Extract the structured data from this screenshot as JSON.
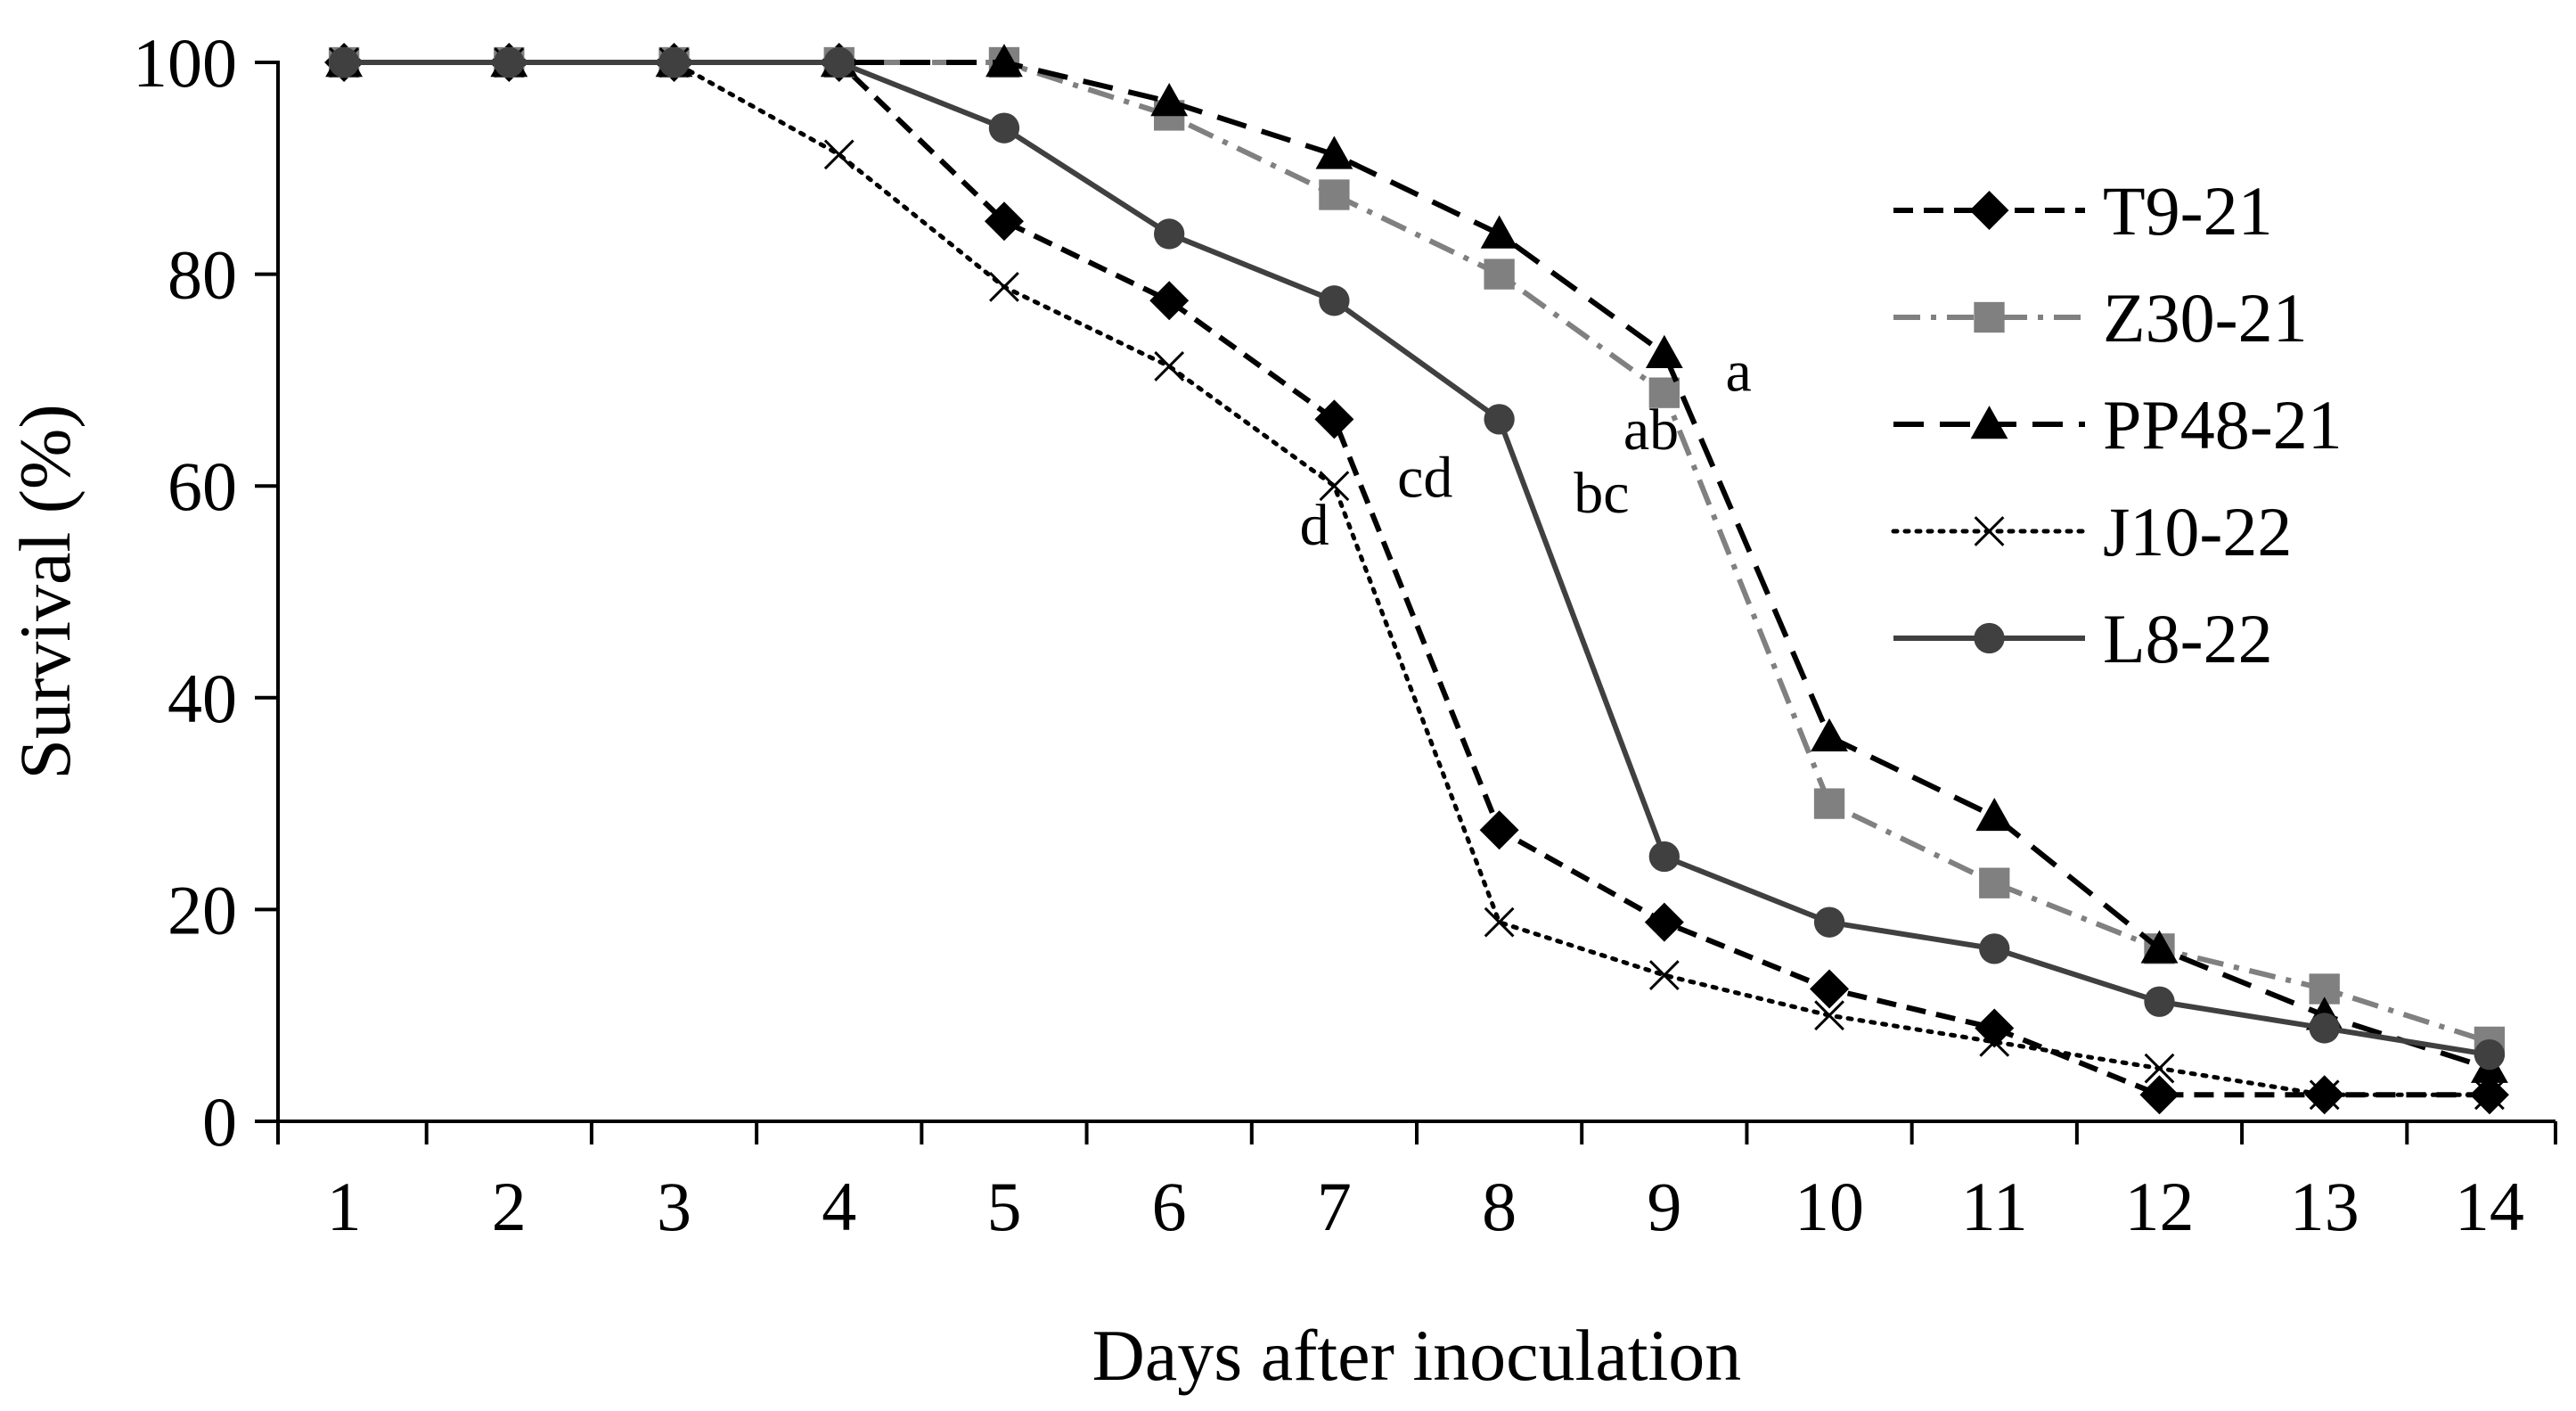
{
  "chart_data": {
    "type": "line",
    "title": "",
    "xlabel": "Days after inoculation",
    "ylabel": "Survival (%)",
    "x": [
      1,
      2,
      3,
      4,
      5,
      6,
      7,
      8,
      9,
      10,
      11,
      12,
      13,
      14
    ],
    "xlim": [
      0.6,
      14.4
    ],
    "ylim": [
      0,
      100
    ],
    "yticks": [
      0,
      20,
      40,
      60,
      80,
      100
    ],
    "grid": false,
    "legend_position": "right",
    "series": [
      {
        "name": "T9-21",
        "values": [
          100,
          100,
          100,
          100,
          85,
          77.5,
          66.3,
          27.5,
          18.8,
          12.5,
          8.8,
          2.5,
          2.5,
          2.5
        ],
        "color": "#000000",
        "dash": "dash",
        "marker": "diamond"
      },
      {
        "name": "Z30-21",
        "values": [
          100,
          100,
          100,
          100,
          100,
          95,
          87.5,
          80,
          68.8,
          30,
          22.5,
          16.3,
          12.5,
          7.5
        ],
        "color": "#808080",
        "dash": "dashdot",
        "marker": "square"
      },
      {
        "name": "PP48-21",
        "values": [
          100,
          100,
          100,
          100,
          100,
          96.3,
          91.3,
          83.8,
          72.5,
          36.3,
          28.8,
          16.3,
          10,
          5
        ],
        "color": "#000000",
        "dash": "longdash",
        "marker": "triangle"
      },
      {
        "name": "J10-22",
        "values": [
          100,
          100,
          100,
          91.3,
          78.8,
          71.3,
          60,
          18.8,
          13.8,
          10,
          7.5,
          5,
          2.5,
          2.5
        ],
        "color": "#000000",
        "dash": "dot",
        "marker": "x"
      },
      {
        "name": "L8-22",
        "values": [
          100,
          100,
          100,
          100,
          93.8,
          83.8,
          77.5,
          66.3,
          25,
          18.8,
          16.3,
          11.3,
          8.8,
          6.3
        ],
        "color": "#404040",
        "dash": "solid",
        "marker": "circle"
      }
    ],
    "annotations": [
      {
        "text": "a",
        "x": 9.45,
        "y": 71
      },
      {
        "text": "ab",
        "x": 8.92,
        "y": 65.5
      },
      {
        "text": "bc",
        "x": 8.62,
        "y": 59.5
      },
      {
        "text": "cd",
        "x": 7.55,
        "y": 61
      },
      {
        "text": "d",
        "x": 6.88,
        "y": 56.5
      }
    ]
  }
}
